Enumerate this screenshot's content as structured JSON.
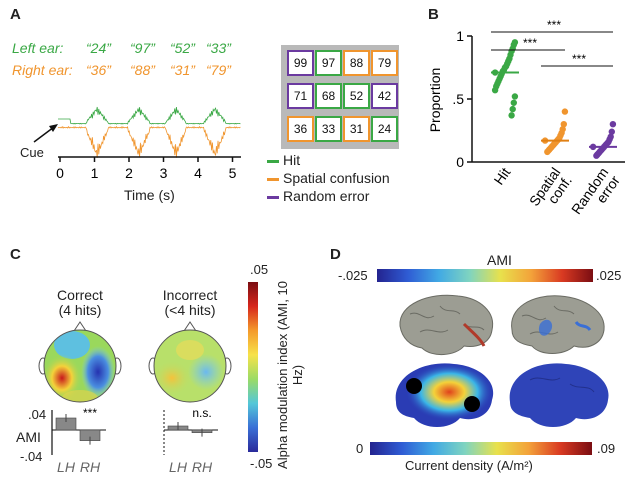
{
  "panels": {
    "a": "A",
    "b": "B",
    "c": "C",
    "d": "D"
  },
  "panel_a": {
    "left_ear_label": "Left ear:",
    "right_ear_label": "Right ear:",
    "left_digits": [
      "“24”",
      "“97”",
      "“52”",
      "“33”"
    ],
    "right_digits": [
      "“36”",
      "“88”",
      "“31”",
      "“79”"
    ],
    "cue_label": "Cue",
    "time_ticks": [
      "0",
      "1",
      "2",
      "3",
      "4",
      "5"
    ],
    "time_axis_label": "Time (s)",
    "grid_cells": [
      {
        "text": "99",
        "color": "purple"
      },
      {
        "text": "97",
        "color": "green"
      },
      {
        "text": "88",
        "color": "orange"
      },
      {
        "text": "79",
        "color": "orange"
      },
      {
        "text": "71",
        "color": "purple"
      },
      {
        "text": "68",
        "color": "green"
      },
      {
        "text": "52",
        "color": "green"
      },
      {
        "text": "42",
        "color": "purple"
      },
      {
        "text": "36",
        "color": "orange"
      },
      {
        "text": "33",
        "color": "green"
      },
      {
        "text": "31",
        "color": "orange"
      },
      {
        "text": "24",
        "color": "green"
      }
    ],
    "legend": [
      {
        "label": "Hit",
        "color": "#3aa845"
      },
      {
        "label": "Spatial confusion",
        "color": "#f0952e"
      },
      {
        "label": "Random error",
        "color": "#6b3aa0"
      }
    ],
    "colors": {
      "green": "#3aa845",
      "orange": "#f0952e",
      "purple": "#6b3aa0"
    }
  },
  "chart_data": [
    {
      "type": "scatter",
      "panel": "B",
      "title": "",
      "ylabel": "Proportion",
      "categories": [
        "Hit",
        "Spatial conf.",
        "Random error"
      ],
      "ylim": [
        0,
        1
      ],
      "yticks": [
        "0",
        ".5",
        "1"
      ],
      "series": [
        {
          "values": [
            0.71,
            0.95,
            0.93,
            0.9,
            0.88,
            0.85,
            0.82,
            0.8,
            0.78,
            0.76,
            0.75,
            0.73,
            0.72,
            0.7,
            0.68,
            0.66,
            0.64,
            0.62,
            0.6,
            0.57,
            0.52,
            0.47,
            0.42,
            0.37
          ]
        },
        {
          "values": [
            0.17,
            0.4,
            0.3,
            0.26,
            0.23,
            0.21,
            0.19,
            0.18,
            0.17,
            0.16,
            0.15,
            0.14,
            0.13,
            0.12,
            0.11,
            0.1,
            0.09,
            0.08
          ]
        },
        {
          "values": [
            0.12,
            0.3,
            0.24,
            0.2,
            0.18,
            0.16,
            0.15,
            0.14,
            0.13,
            0.12,
            0.11,
            0.1,
            0.09,
            0.08,
            0.07,
            0.06,
            0.05
          ]
        }
      ],
      "means": [
        0.71,
        0.17,
        0.12
      ],
      "significance": [
        {
          "pair": [
            "Hit",
            "Spatial conf."
          ],
          "label": "***"
        },
        {
          "pair": [
            "Hit",
            "Random error"
          ],
          "label": "***"
        },
        {
          "pair": [
            "Spatial conf.",
            "Random error"
          ],
          "label": "***"
        }
      ]
    },
    {
      "type": "bar",
      "panel": "C",
      "ylabel": "AMI",
      "yticks": [
        ".04",
        "-.04"
      ],
      "groups": [
        {
          "title": "Correct",
          "subtitle": "(4 hits)",
          "categories": [
            "LH",
            "RH"
          ],
          "values": [
            0.018,
            -0.016
          ],
          "significance": "***"
        },
        {
          "title": "Incorrect",
          "subtitle": "(<4 hits)",
          "categories": [
            "LH",
            "RH"
          ],
          "values": [
            0.006,
            -0.004
          ],
          "significance": "n.s."
        }
      ],
      "colorbar": {
        "label": "Alpha modulation index (AMI, 10 Hz)",
        "min": "-.05",
        "max": ".05"
      }
    }
  ],
  "panel_d": {
    "ami_label": "AMI",
    "ami_min": "-.025",
    "ami_max": ".025",
    "density_min": "0",
    "density_max": ".09",
    "density_label": "Current density (A/m²)"
  }
}
